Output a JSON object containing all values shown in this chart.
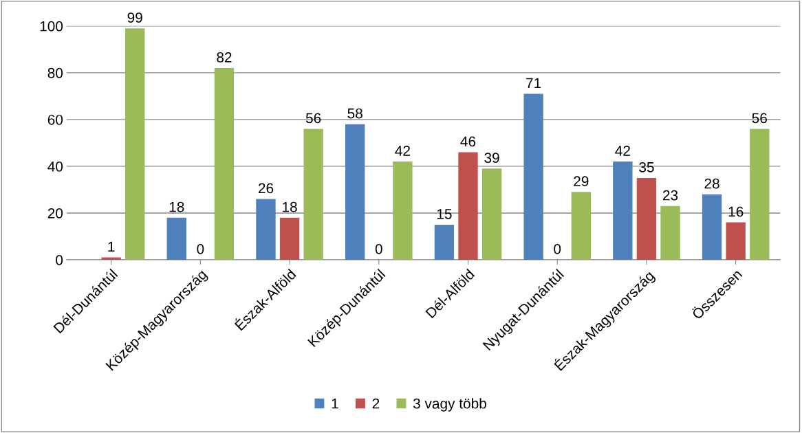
{
  "chart_data": {
    "type": "bar",
    "categories": [
      "Dél-Dunántúl",
      "Közép-Magyarország",
      "Észak-Alföld",
      "Közép-Dunántúl",
      "Dél-Alföld",
      "Nyugat-Dunántúl",
      "Észak-Magyarország",
      "Összesen"
    ],
    "series": [
      {
        "name": "1",
        "color": "#4f81bd",
        "values": [
          null,
          18,
          26,
          58,
          15,
          71,
          42,
          28
        ]
      },
      {
        "name": "2",
        "color": "#c0504d",
        "values": [
          1,
          0,
          18,
          0,
          46,
          0,
          35,
          16
        ]
      },
      {
        "name": "3 vagy több",
        "color": "#9bbb59",
        "values": [
          99,
          82,
          56,
          42,
          39,
          29,
          23,
          56
        ]
      }
    ],
    "ylim": [
      0,
      100
    ],
    "yticks": [
      0,
      20,
      40,
      60,
      80,
      100
    ],
    "grid": "y",
    "legend": "bottom",
    "data_labels": true
  }
}
